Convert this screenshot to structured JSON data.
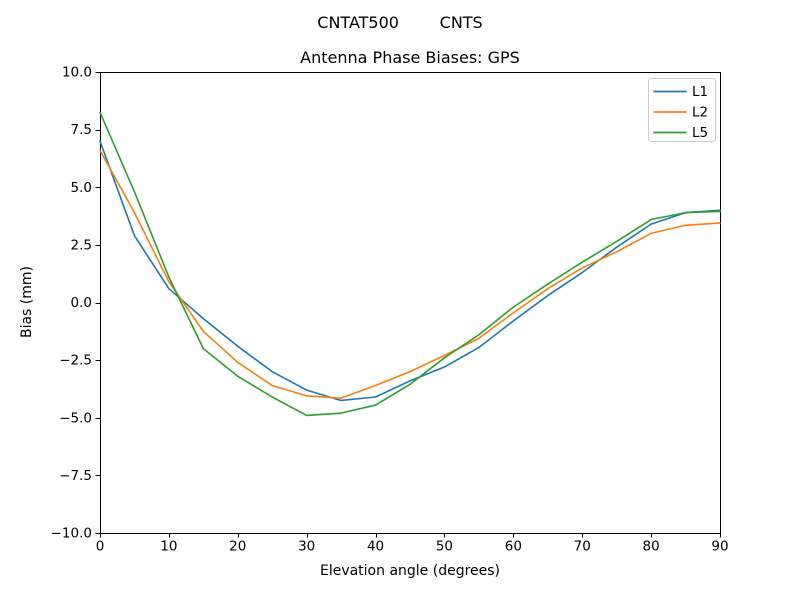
{
  "figure": {
    "suptitle": "CNTAT500        CNTS",
    "background": "#ffffff",
    "text_color": "#000000"
  },
  "chart_data": {
    "type": "line",
    "title": "Antenna Phase Biases: GPS",
    "xlabel": "Elevation angle (degrees)",
    "ylabel": "Bias (mm)",
    "xlim": [
      0,
      90
    ],
    "ylim": [
      -10,
      10
    ],
    "grid": false,
    "legend_position": "upper right",
    "legend_border_color": "#cccccc",
    "axis_color": "#000000",
    "x": [
      0,
      5,
      10,
      15,
      20,
      25,
      30,
      35,
      40,
      45,
      50,
      55,
      60,
      65,
      70,
      75,
      80,
      85,
      90
    ],
    "series": [
      {
        "name": "L1",
        "color": "#1f77b4",
        "values": [
          7.0,
          2.9,
          0.6,
          -0.7,
          -1.9,
          -3.0,
          -3.8,
          -4.25,
          -4.1,
          -3.4,
          -2.8,
          -1.95,
          -0.8,
          0.3,
          1.3,
          2.4,
          3.4,
          3.9,
          4.0
        ]
      },
      {
        "name": "L2",
        "color": "#ff7f0e",
        "values": [
          6.6,
          3.9,
          0.9,
          -1.25,
          -2.6,
          -3.6,
          -4.05,
          -4.15,
          -3.6,
          -3.0,
          -2.3,
          -1.55,
          -0.45,
          0.6,
          1.5,
          2.2,
          3.0,
          3.35,
          3.45
        ]
      },
      {
        "name": "L5",
        "color": "#2ca02c",
        "values": [
          8.25,
          4.8,
          1.1,
          -2.0,
          -3.2,
          -4.1,
          -4.9,
          -4.8,
          -4.45,
          -3.55,
          -2.4,
          -1.4,
          -0.2,
          0.8,
          1.75,
          2.65,
          3.6,
          3.9,
          3.95
        ]
      }
    ],
    "xticks": {
      "values": [
        0,
        10,
        20,
        30,
        40,
        50,
        60,
        70,
        80,
        90
      ],
      "labels": [
        "0",
        "10",
        "20",
        "30",
        "40",
        "50",
        "60",
        "70",
        "80",
        "90"
      ]
    },
    "yticks": {
      "values": [
        10,
        7.5,
        5,
        2.5,
        0,
        -2.5,
        -5,
        -7.5,
        -10
      ],
      "labels": [
        "10.0",
        "7.5",
        "5.0",
        "2.5",
        "0.0",
        "−2.5",
        "−5.0",
        "−7.5",
        "−10.0"
      ]
    }
  }
}
